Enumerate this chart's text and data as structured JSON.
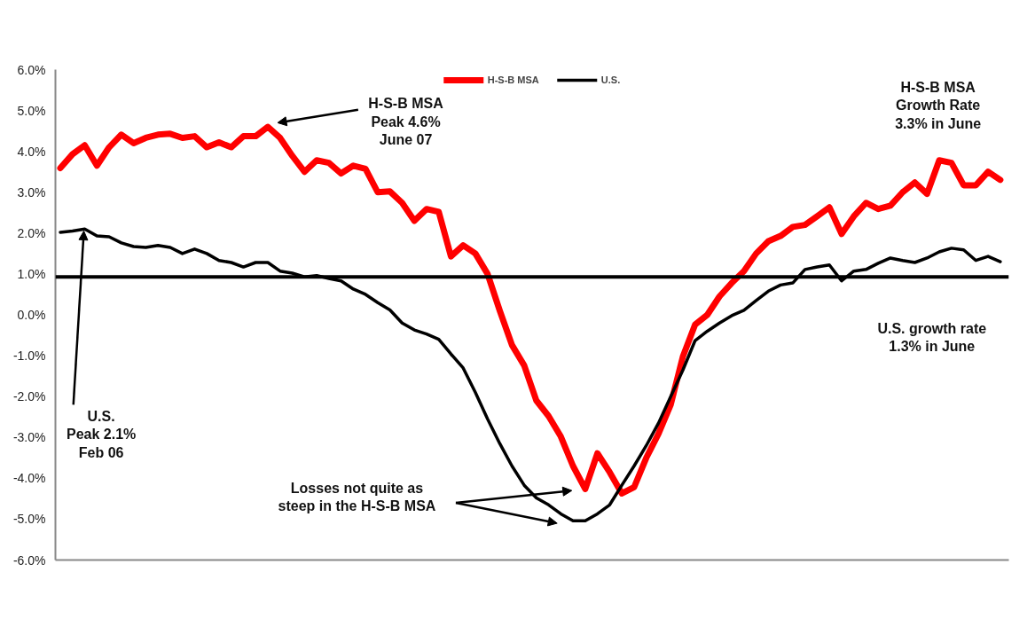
{
  "chart_data": {
    "type": "line",
    "categories": [
      null,
      null,
      null,
      null,
      null,
      null,
      null,
      null,
      null,
      null,
      null,
      null,
      null,
      null,
      null,
      null,
      null,
      null,
      null,
      null,
      null,
      null,
      null,
      null,
      null,
      null,
      null,
      null,
      null,
      null,
      null,
      null,
      null,
      null,
      null,
      null,
      null,
      null,
      null,
      null,
      null,
      null,
      null,
      null,
      null,
      null,
      null,
      null,
      null,
      null,
      null,
      null,
      null,
      null,
      null,
      null,
      null,
      null,
      null,
      null,
      null,
      null,
      null,
      null,
      null,
      null,
      null,
      null,
      null,
      null,
      null,
      null,
      null,
      null,
      null,
      null,
      null,
      null
    ],
    "series": [
      {
        "name": "H-S-B MSA",
        "color": "#ff0000",
        "values": [
          3.59,
          3.93,
          4.15,
          3.65,
          4.1,
          4.41,
          4.2,
          4.33,
          4.41,
          4.43,
          4.33,
          4.37,
          4.1,
          4.22,
          4.1,
          4.37,
          4.37,
          4.6,
          4.33,
          3.89,
          3.5,
          3.78,
          3.72,
          3.46,
          3.65,
          3.57,
          3.0,
          3.02,
          2.74,
          2.3,
          2.59,
          2.52,
          1.43,
          1.7,
          1.5,
          1.0,
          0.1,
          -0.74,
          -1.24,
          -2.1,
          -2.48,
          -2.98,
          -3.7,
          -4.26,
          -3.39,
          -3.85,
          -4.37,
          -4.22,
          -3.5,
          -2.91,
          -2.2,
          -1.02,
          -0.24,
          0.0,
          0.45,
          0.78,
          1.07,
          1.5,
          1.8,
          1.93,
          2.15,
          2.2,
          2.41,
          2.63,
          1.98,
          2.41,
          2.74,
          2.59,
          2.67,
          3.0,
          3.24,
          2.96,
          3.78,
          3.72,
          3.17,
          3.17,
          3.5,
          3.3
        ]
      },
      {
        "name": "U.S.",
        "color": "#000000",
        "values": [
          2.02,
          2.05,
          2.1,
          1.93,
          1.91,
          1.76,
          1.67,
          1.65,
          1.7,
          1.65,
          1.5,
          1.61,
          1.5,
          1.33,
          1.28,
          1.17,
          1.28,
          1.28,
          1.07,
          1.02,
          0.93,
          0.96,
          0.89,
          0.83,
          0.63,
          0.5,
          0.3,
          0.12,
          -0.2,
          -0.37,
          -0.47,
          -0.6,
          -0.96,
          -1.3,
          -1.9,
          -2.55,
          -3.15,
          -3.7,
          -4.17,
          -4.48,
          -4.65,
          -4.87,
          -5.04,
          -5.04,
          -4.87,
          -4.65,
          -4.17,
          -3.7,
          -3.2,
          -2.65,
          -2.0,
          -1.35,
          -0.63,
          -0.4,
          -0.2,
          -0.02,
          0.11,
          0.35,
          0.58,
          0.73,
          0.78,
          1.11,
          1.17,
          1.22,
          0.83,
          1.07,
          1.11,
          1.26,
          1.39,
          1.33,
          1.28,
          1.39,
          1.54,
          1.63,
          1.59,
          1.33,
          1.43,
          1.3
        ]
      }
    ],
    "ylim": [
      -6,
      6
    ],
    "yticks": [
      {
        "value": -6,
        "label": "-6.0%"
      },
      {
        "value": -5,
        "label": "-5.0%"
      },
      {
        "value": -4,
        "label": "-4.0%"
      },
      {
        "value": -3,
        "label": "-3.0%"
      },
      {
        "value": -2,
        "label": "-2.0%"
      },
      {
        "value": -1,
        "label": "-1.0%"
      },
      {
        "value": 0,
        "label": "0.0%"
      },
      {
        "value": 1,
        "label": "1.0%"
      },
      {
        "value": 2,
        "label": "2.0%"
      },
      {
        "value": 3,
        "label": "3.0%"
      },
      {
        "value": 4,
        "label": "4.0%"
      },
      {
        "value": 5,
        "label": "5.0%"
      },
      {
        "value": 6,
        "label": "6.0%"
      }
    ],
    "ref_lines": [
      {
        "axis": "y",
        "value": 0.93,
        "color": "#000000"
      }
    ],
    "annotations": [
      "H-S-B MSA\nPeak 4.6%\nJune 07",
      "H-S-B MSA\nGrowth Rate\n3.3% in June",
      "U.S. growth rate\n1.3% in June",
      "U.S.\nPeak 2.1%\nFeb 06",
      "Losses not quite as\nsteep in the H-S-B MSA"
    ],
    "grid": false,
    "legend": "top",
    "marker": "none",
    "line_style": "solid"
  }
}
